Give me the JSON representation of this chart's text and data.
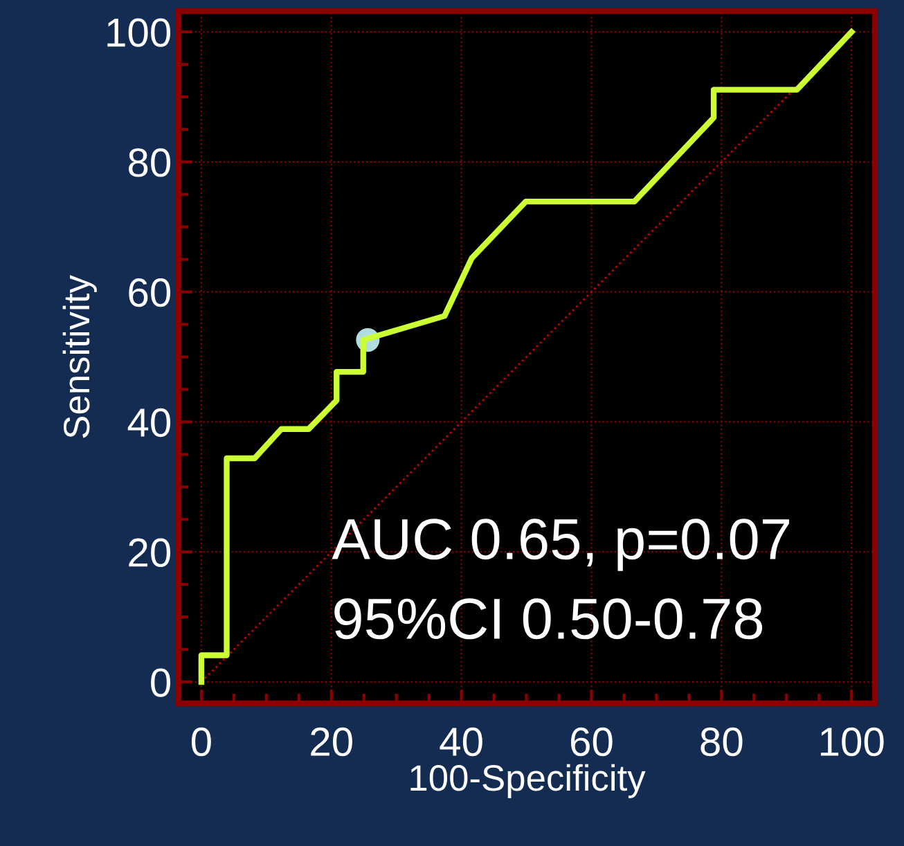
{
  "chart_data": {
    "type": "line",
    "xlabel": "100-Specificity",
    "ylabel": "Sensitivity",
    "xlim": [
      -3.5,
      103.6
    ],
    "ylim": [
      -3.3,
      103.2
    ],
    "xticks": [
      0,
      20,
      40,
      60,
      80,
      100
    ],
    "yticks": [
      0,
      20,
      40,
      60,
      80,
      100
    ],
    "grid": true,
    "series": [
      {
        "color": "#cc0000",
        "line_style": "dotted",
        "x": [
          0,
          100
        ],
        "values": [
          0,
          100
        ]
      },
      {
        "color": "#ccff33",
        "line_style": "solid",
        "x": [
          0,
          0,
          3.9,
          3.9,
          8.2,
          12.3,
          16.5,
          20.8,
          20.8,
          24.9,
          24.9,
          37.4,
          41.6,
          49.9,
          66.6,
          78.8,
          78.8,
          91.6,
          100
        ],
        "values": [
          0,
          4.1,
          4.1,
          34.4,
          34.4,
          38.9,
          38.9,
          43.3,
          47.7,
          47.7,
          52.6,
          56.3,
          65.2,
          73.9,
          73.9,
          86.8,
          91.1,
          91.1,
          100
        ]
      },
      {
        "type": "scatter",
        "color": "#b0dde0",
        "marker": "circle",
        "x": [
          25.6
        ],
        "values": [
          52.6
        ]
      }
    ],
    "annotations": [
      "AUC 0.65, p=0.07",
      "95%CI 0.50-0.78"
    ]
  }
}
